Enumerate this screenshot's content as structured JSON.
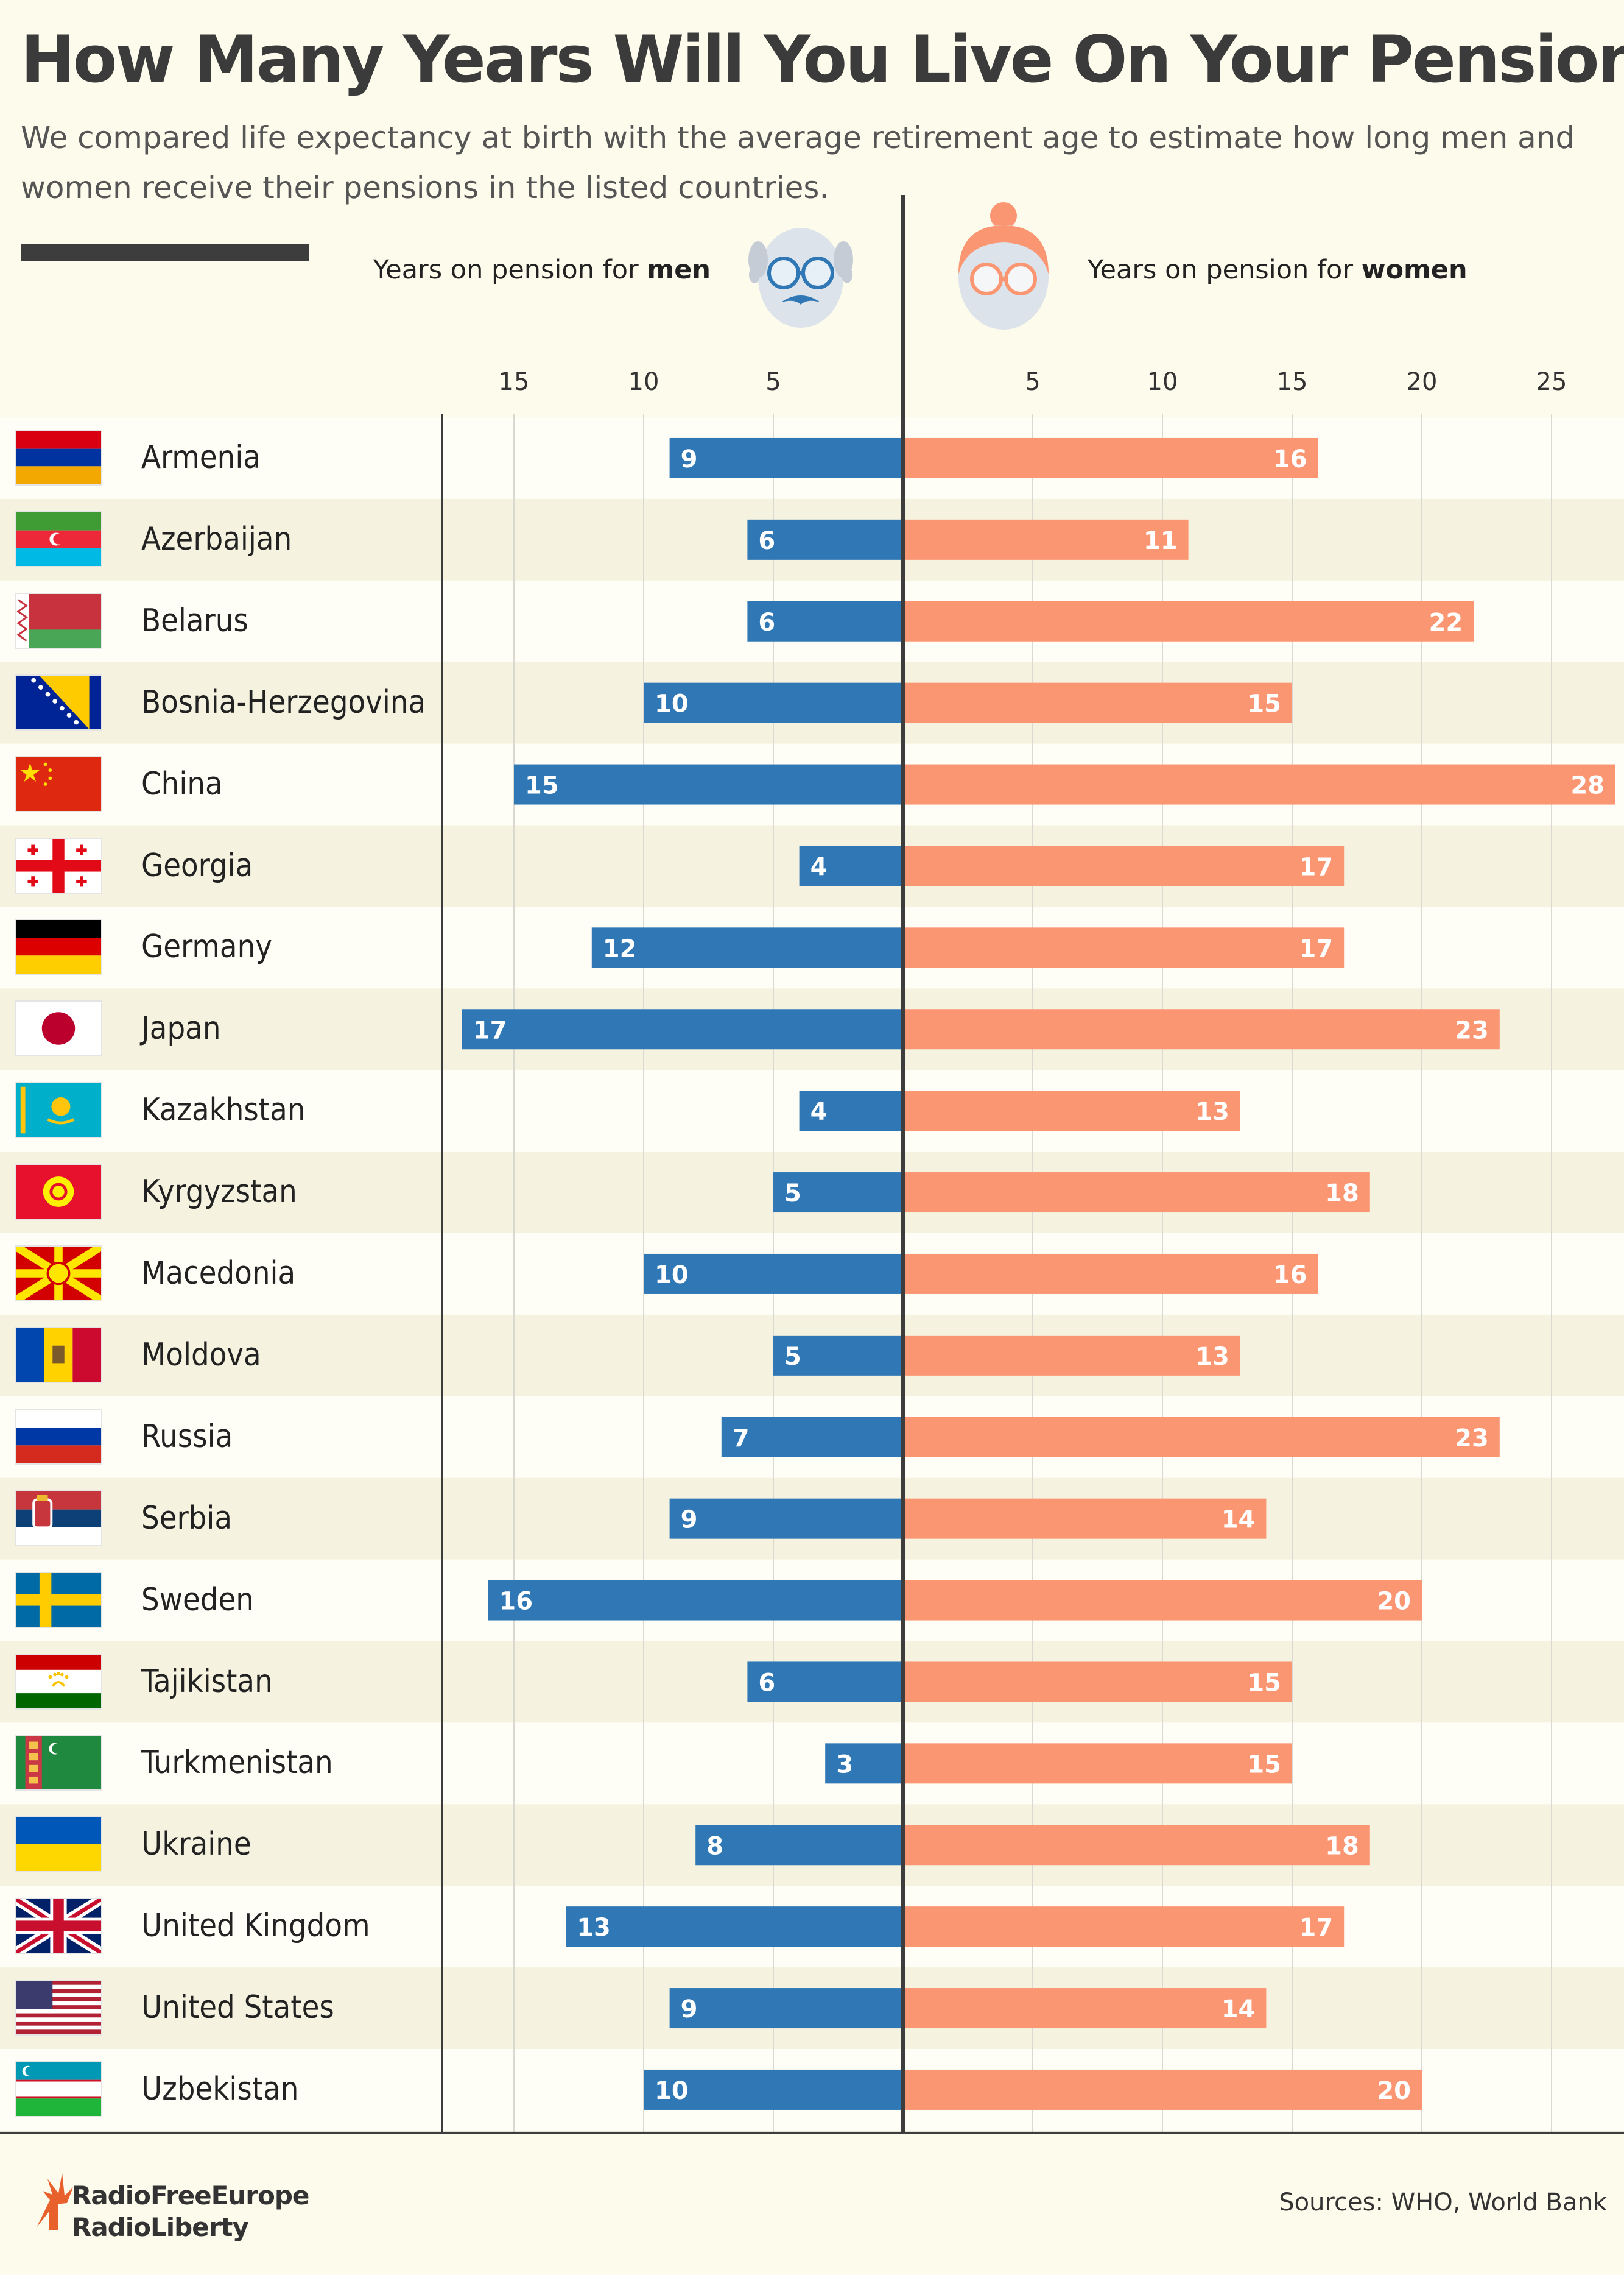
{
  "title": "How Many Years Will You Live On Your Pension?",
  "subtitle": "We compared life expectancy at birth with the average retirement age to estimate how long men and women receive their pensions in the listed countries.",
  "men_label_prefix": "Years on pension for ",
  "men_label_strong": "men",
  "women_label_prefix": "Years on pension for ",
  "women_label_strong": "women",
  "sources": "Sources: WHO, World Bank",
  "logo": {
    "line1": "RadioFreeEurope",
    "line2": "RadioLiberty"
  },
  "colors": {
    "men": "#2f78b5",
    "women": "#fb9673",
    "band": "#f5f3df",
    "axis": "#3d3d3d"
  },
  "chart_data": {
    "type": "bar",
    "orientation": "horizontal-diverging",
    "x_ticks_left": [
      15,
      10,
      5
    ],
    "x_ticks_right": [
      5,
      10,
      15,
      20,
      25
    ],
    "categories": [
      "Armenia",
      "Azerbaijan",
      "Belarus",
      "Bosnia-Herzegovina",
      "China",
      "Georgia",
      "Germany",
      "Japan",
      "Kazakhstan",
      "Kyrgyzstan",
      "Macedonia",
      "Moldova",
      "Russia",
      "Serbia",
      "Sweden",
      "Tajikistan",
      "Turkmenistan",
      "Ukraine",
      "United Kingdom",
      "United States",
      "Uzbekistan"
    ],
    "series": [
      {
        "name": "men",
        "values": [
          9,
          6,
          6,
          10,
          15,
          4,
          12,
          17,
          4,
          5,
          10,
          5,
          7,
          9,
          16,
          6,
          3,
          8,
          13,
          9,
          10
        ]
      },
      {
        "name": "women",
        "values": [
          16,
          11,
          22,
          15,
          28,
          17,
          17,
          23,
          13,
          18,
          16,
          13,
          23,
          14,
          20,
          15,
          15,
          18,
          17,
          14,
          20
        ]
      }
    ]
  },
  "flags": [
    "armenia",
    "azerbaijan",
    "belarus",
    "bosnia",
    "china",
    "georgia",
    "germany",
    "japan",
    "kazakhstan",
    "kyrgyzstan",
    "macedonia",
    "moldova",
    "russia",
    "serbia",
    "sweden",
    "tajikistan",
    "turkmenistan",
    "ukraine",
    "united-kingdom",
    "united-states",
    "uzbekistan"
  ]
}
